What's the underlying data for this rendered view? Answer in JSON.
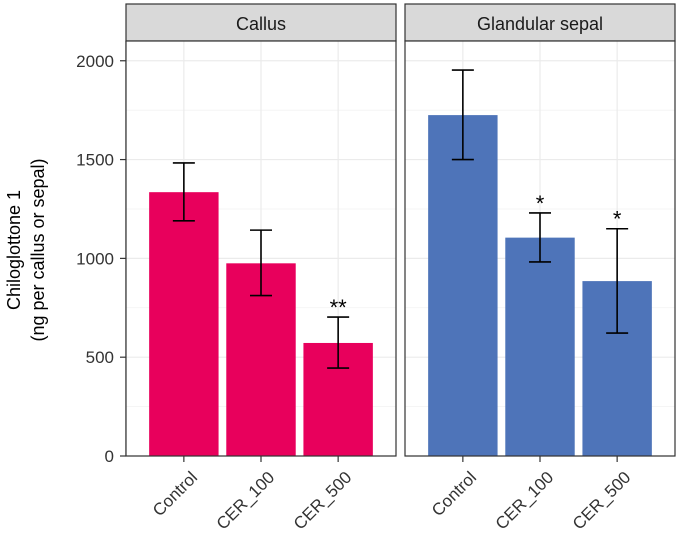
{
  "chart_data": {
    "type": "bar",
    "ylabel_line1": "Chiloglottone 1",
    "ylabel_line2": "(ng per callus or sepal)",
    "ylim": [
      0,
      2100
    ],
    "yticks": [
      0,
      500,
      1000,
      1500,
      2000
    ],
    "categories": [
      "Control",
      "CER_100",
      "CER_500"
    ],
    "grid": true,
    "panels": [
      {
        "title": "Callus",
        "color": "#E8005C",
        "values": [
          1335,
          975,
          572
        ],
        "err_low": [
          1190,
          812,
          445
        ],
        "err_high": [
          1483,
          1143,
          703
        ],
        "significance": [
          "",
          "",
          "**"
        ]
      },
      {
        "title": "Glandular sepal",
        "color": "#4E74B9",
        "values": [
          1725,
          1105,
          885
        ],
        "err_low": [
          1500,
          982,
          622
        ],
        "err_high": [
          1953,
          1230,
          1150
        ],
        "significance": [
          "",
          "*",
          "*"
        ]
      }
    ]
  }
}
